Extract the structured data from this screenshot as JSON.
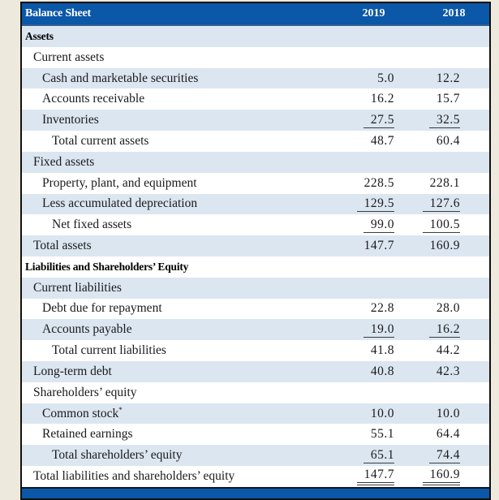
{
  "page": {
    "background_color": "#EDE9DC"
  },
  "table": {
    "title": "Balance Sheet",
    "columns": [
      "2019",
      "2018"
    ],
    "colors": {
      "header_bg": "#0B57A8",
      "header_text": "#FFFFFF",
      "shaded_row_bg": "#DBE6F1",
      "text": "#1A1A1A",
      "underline": "#3C3C3C",
      "border": "#101010"
    },
    "rows": [
      {
        "label": "Assets",
        "indent": 0,
        "bold": true,
        "shaded": true,
        "v2019": "",
        "v2018": "",
        "underline": "none"
      },
      {
        "label": "Current assets",
        "indent": 1,
        "bold": false,
        "shaded": false,
        "v2019": "",
        "v2018": "",
        "underline": "none"
      },
      {
        "label": "Cash and marketable securities",
        "indent": 2,
        "bold": false,
        "shaded": true,
        "v2019": "5.0",
        "v2018": "12.2",
        "underline": "none"
      },
      {
        "label": "Accounts receivable",
        "indent": 2,
        "bold": false,
        "shaded": false,
        "v2019": "16.2",
        "v2018": "15.7",
        "underline": "none"
      },
      {
        "label": "Inventories",
        "indent": 2,
        "bold": false,
        "shaded": true,
        "v2019": "27.5",
        "v2018": "32.5",
        "underline": "single"
      },
      {
        "label": "Total current assets",
        "indent": 3,
        "bold": false,
        "shaded": false,
        "v2019": "48.7",
        "v2018": "60.4",
        "underline": "none"
      },
      {
        "label": "Fixed assets",
        "indent": 1,
        "bold": false,
        "shaded": true,
        "v2019": "",
        "v2018": "",
        "underline": "none"
      },
      {
        "label": "Property, plant, and equipment",
        "indent": 2,
        "bold": false,
        "shaded": false,
        "v2019": "228.5",
        "v2018": "228.1",
        "underline": "none"
      },
      {
        "label": "Less accumulated depreciation",
        "indent": 2,
        "bold": false,
        "shaded": true,
        "v2019": "129.5",
        "v2018": "127.6",
        "underline": "single"
      },
      {
        "label": "Net fixed assets",
        "indent": 3,
        "bold": false,
        "shaded": false,
        "v2019": "99.0",
        "v2018": "100.5",
        "underline": "single"
      },
      {
        "label": "Total assets",
        "indent": 1,
        "bold": false,
        "shaded": true,
        "v2019": "147.7",
        "v2018": "160.9",
        "underline": "none"
      },
      {
        "label": "Liabilities and Shareholders’ Equity",
        "indent": 0,
        "bold": true,
        "shaded": false,
        "v2019": "",
        "v2018": "",
        "underline": "none"
      },
      {
        "label": "Current liabilities",
        "indent": 1,
        "bold": false,
        "shaded": true,
        "v2019": "",
        "v2018": "",
        "underline": "none"
      },
      {
        "label": "Debt due for repayment",
        "indent": 2,
        "bold": false,
        "shaded": false,
        "v2019": "22.8",
        "v2018": "28.0",
        "underline": "none"
      },
      {
        "label": "Accounts payable",
        "indent": 2,
        "bold": false,
        "shaded": true,
        "v2019": "19.0",
        "v2018": "16.2",
        "underline": "single"
      },
      {
        "label": "Total current liabilities",
        "indent": 3,
        "bold": false,
        "shaded": false,
        "v2019": "41.8",
        "v2018": "44.2",
        "underline": "none"
      },
      {
        "label": "Long-term debt",
        "indent": 1,
        "bold": false,
        "shaded": true,
        "v2019": "40.8",
        "v2018": "42.3",
        "underline": "none"
      },
      {
        "label": "Shareholders’ equity",
        "indent": 1,
        "bold": false,
        "shaded": false,
        "v2019": "",
        "v2018": "",
        "underline": "none"
      },
      {
        "label": "Common stock",
        "label_sup": "*",
        "indent": 2,
        "bold": false,
        "shaded": true,
        "v2019": "10.0",
        "v2018": "10.0",
        "underline": "none"
      },
      {
        "label": "Retained earnings",
        "indent": 2,
        "bold": false,
        "shaded": false,
        "v2019": "55.1",
        "v2018": "64.4",
        "underline": "none"
      },
      {
        "label": "Total shareholders’ equity",
        "indent": 3,
        "bold": false,
        "shaded": true,
        "v2019": "65.1",
        "v2018": "74.4",
        "underline": "single"
      },
      {
        "label": "Total liabilities and shareholders’ equity",
        "indent": 1,
        "bold": false,
        "shaded": false,
        "v2019": "147.7",
        "v2018": "160.9",
        "underline": "double"
      }
    ]
  }
}
